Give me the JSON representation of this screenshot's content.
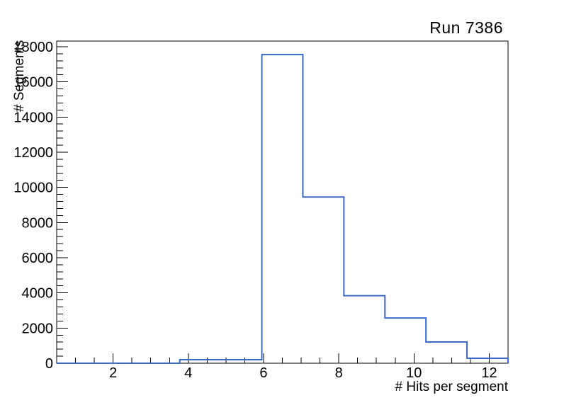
{
  "window": {
    "background_color": "#ffffff"
  },
  "chart_data": {
    "type": "histogram",
    "title": "Run 7386",
    "xlabel": "# Hits per segment",
    "ylabel": "# Segments",
    "x_range": [
      0.5,
      12.5
    ],
    "y_range": [
      0,
      18320
    ],
    "n_bins": 11,
    "bin_edges": [
      0.5,
      1.5909,
      2.6818,
      3.7727,
      4.8636,
      5.9545,
      7.0455,
      8.1364,
      9.2273,
      10.3182,
      11.4091,
      12.5
    ],
    "counts": [
      0,
      0,
      0,
      200,
      200,
      17550,
      9450,
      3840,
      2570,
      1210,
      280
    ],
    "x_major_ticks": [
      2,
      4,
      6,
      8,
      10,
      12
    ],
    "x_major_tick_labels": [
      "2",
      "4",
      "6",
      "8",
      "10",
      "12"
    ],
    "x_minor_tick_step": 0.5,
    "y_major_tick_step": 2000,
    "y_major_tick_labels": [
      "0",
      "2000",
      "4000",
      "6000",
      "8000",
      "10000",
      "12000",
      "14000",
      "16000",
      "18000"
    ],
    "y_minor_tick_step": 400,
    "grid": false,
    "legend": null,
    "line_color": "#3a69c6",
    "frame_color": "#000000",
    "text_color": "#000000"
  }
}
